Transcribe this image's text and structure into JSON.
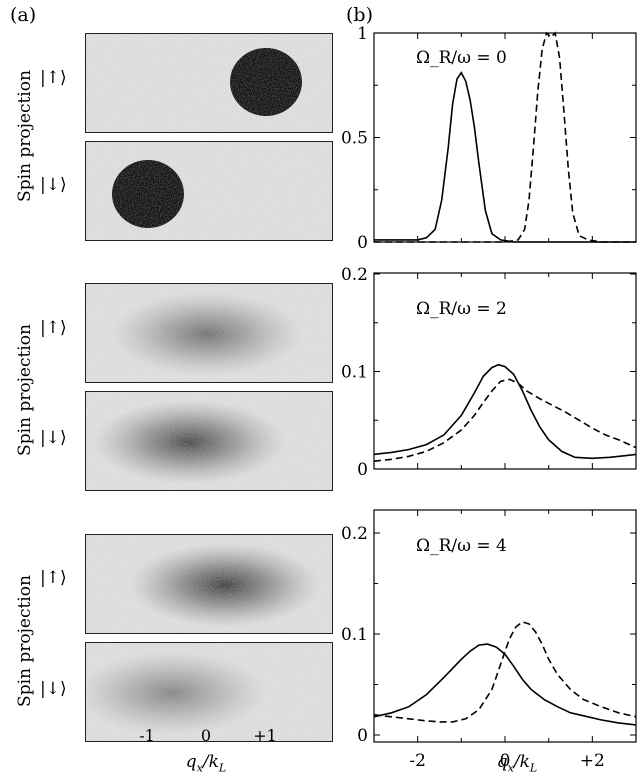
{
  "panel_a_label": "(a)",
  "panel_b_label": "(b)",
  "spin_projection_label": "Spin projection",
  "ket_up": "|↑⟩",
  "ket_down": "|↓⟩",
  "a_xticks": [
    "-1",
    "0",
    "+1"
  ],
  "a_xlabel": "q_x/k_L",
  "b_xlabel": "q_x/k_L",
  "images": [
    {
      "row": 1,
      "state": "up",
      "blob_qx": 1.0,
      "blob_darkness": 1.0,
      "blob_kind": "sharp"
    },
    {
      "row": 1,
      "state": "down",
      "blob_qx": -1.0,
      "blob_darkness": 1.0,
      "blob_kind": "sharp"
    },
    {
      "row": 2,
      "state": "up",
      "blob_qx": 0.0,
      "blob_darkness": 0.55,
      "blob_kind": "diffuse"
    },
    {
      "row": 2,
      "state": "down",
      "blob_qx": -0.3,
      "blob_darkness": 0.75,
      "blob_kind": "diffuse"
    },
    {
      "row": 3,
      "state": "up",
      "blob_qx": 0.3,
      "blob_darkness": 0.8,
      "blob_kind": "diffuse"
    },
    {
      "row": 3,
      "state": "down",
      "blob_qx": -0.6,
      "blob_darkness": 0.45,
      "blob_kind": "diffuse"
    }
  ],
  "chart_data": [
    {
      "type": "line",
      "annotation": "Ω_R/ω = 0",
      "xlim": [
        -3,
        3
      ],
      "ylim": [
        0,
        1
      ],
      "yticks": [
        "0",
        "0.5",
        "1"
      ],
      "xticks": [
        "-2",
        "0",
        "+2"
      ],
      "series": [
        {
          "style": "solid",
          "x": [
            -3.0,
            -2.4,
            -2.0,
            -1.8,
            -1.6,
            -1.45,
            -1.3,
            -1.2,
            -1.1,
            -1.0,
            -0.9,
            -0.8,
            -0.7,
            -0.6,
            -0.45,
            -0.3,
            -0.1,
            0.2,
            0.6,
            1.0,
            1.5,
            2.0,
            2.5,
            3.0
          ],
          "y": [
            0.01,
            0.01,
            0.01,
            0.02,
            0.06,
            0.2,
            0.45,
            0.66,
            0.78,
            0.81,
            0.77,
            0.68,
            0.55,
            0.38,
            0.15,
            0.04,
            0.01,
            0.0,
            0.0,
            0.0,
            0.0,
            0.0,
            0.0,
            0.0
          ]
        },
        {
          "style": "dashed",
          "x": [
            -3.0,
            -1.0,
            0.0,
            0.3,
            0.45,
            0.55,
            0.65,
            0.75,
            0.85,
            0.95,
            1.05,
            1.15,
            1.25,
            1.35,
            1.45,
            1.55,
            1.7,
            1.9,
            2.2,
            2.6,
            3.0
          ],
          "y": [
            0.0,
            0.0,
            0.0,
            0.01,
            0.06,
            0.2,
            0.45,
            0.72,
            0.92,
            1.0,
            0.98,
            1.0,
            0.88,
            0.62,
            0.35,
            0.14,
            0.03,
            0.01,
            0.0,
            0.0,
            0.0
          ]
        }
      ]
    },
    {
      "type": "line",
      "annotation": "Ω_R/ω = 2",
      "xlim": [
        -3,
        3
      ],
      "ylim": [
        0,
        0.2
      ],
      "yticks": [
        "0",
        "0.1",
        "0.2"
      ],
      "xticks": [
        "-2",
        "0",
        "+2"
      ],
      "series": [
        {
          "style": "solid",
          "x": [
            -3.0,
            -2.6,
            -2.2,
            -1.8,
            -1.4,
            -1.0,
            -0.7,
            -0.5,
            -0.3,
            -0.15,
            0.0,
            0.2,
            0.4,
            0.6,
            0.8,
            1.0,
            1.3,
            1.6,
            2.0,
            2.4,
            2.8,
            3.0
          ],
          "y": [
            0.015,
            0.017,
            0.02,
            0.025,
            0.035,
            0.055,
            0.078,
            0.095,
            0.104,
            0.107,
            0.105,
            0.097,
            0.08,
            0.06,
            0.043,
            0.03,
            0.018,
            0.012,
            0.011,
            0.012,
            0.014,
            0.015
          ]
        },
        {
          "style": "dashed",
          "x": [
            -3.0,
            -2.6,
            -2.2,
            -1.8,
            -1.4,
            -1.0,
            -0.7,
            -0.5,
            -0.3,
            -0.1,
            0.1,
            0.3,
            0.5,
            0.8,
            1.1,
            1.4,
            1.7,
            2.0,
            2.3,
            2.6,
            3.0
          ],
          "y": [
            0.008,
            0.01,
            0.013,
            0.018,
            0.027,
            0.04,
            0.055,
            0.068,
            0.08,
            0.09,
            0.092,
            0.088,
            0.08,
            0.072,
            0.065,
            0.058,
            0.05,
            0.042,
            0.035,
            0.03,
            0.022
          ]
        }
      ]
    },
    {
      "type": "line",
      "annotation": "Ω_R/ω = 4",
      "xlim": [
        -3,
        3
      ],
      "ylim": [
        0,
        0.2
      ],
      "yticks": [
        "0",
        "0.1",
        "0.2"
      ],
      "xticks": [
        "-2",
        "0",
        "+2"
      ],
      "series": [
        {
          "style": "solid",
          "x": [
            -3.0,
            -2.6,
            -2.2,
            -1.8,
            -1.4,
            -1.0,
            -0.8,
            -0.6,
            -0.4,
            -0.2,
            0.0,
            0.2,
            0.4,
            0.6,
            0.9,
            1.2,
            1.5,
            1.8,
            2.2,
            2.6,
            3.0
          ],
          "y": [
            0.018,
            0.022,
            0.028,
            0.04,
            0.057,
            0.075,
            0.083,
            0.089,
            0.09,
            0.087,
            0.08,
            0.068,
            0.055,
            0.045,
            0.035,
            0.028,
            0.022,
            0.019,
            0.015,
            0.012,
            0.01
          ]
        },
        {
          "style": "dashed",
          "x": [
            -3.0,
            -2.6,
            -2.2,
            -1.8,
            -1.5,
            -1.2,
            -0.9,
            -0.6,
            -0.3,
            -0.1,
            0.1,
            0.25,
            0.4,
            0.55,
            0.7,
            0.85,
            1.0,
            1.2,
            1.5,
            1.8,
            2.2,
            2.6,
            3.0
          ],
          "y": [
            0.02,
            0.018,
            0.016,
            0.014,
            0.013,
            0.013,
            0.016,
            0.025,
            0.045,
            0.07,
            0.095,
            0.107,
            0.112,
            0.11,
            0.102,
            0.09,
            0.075,
            0.06,
            0.045,
            0.035,
            0.028,
            0.022,
            0.018
          ]
        }
      ]
    }
  ]
}
